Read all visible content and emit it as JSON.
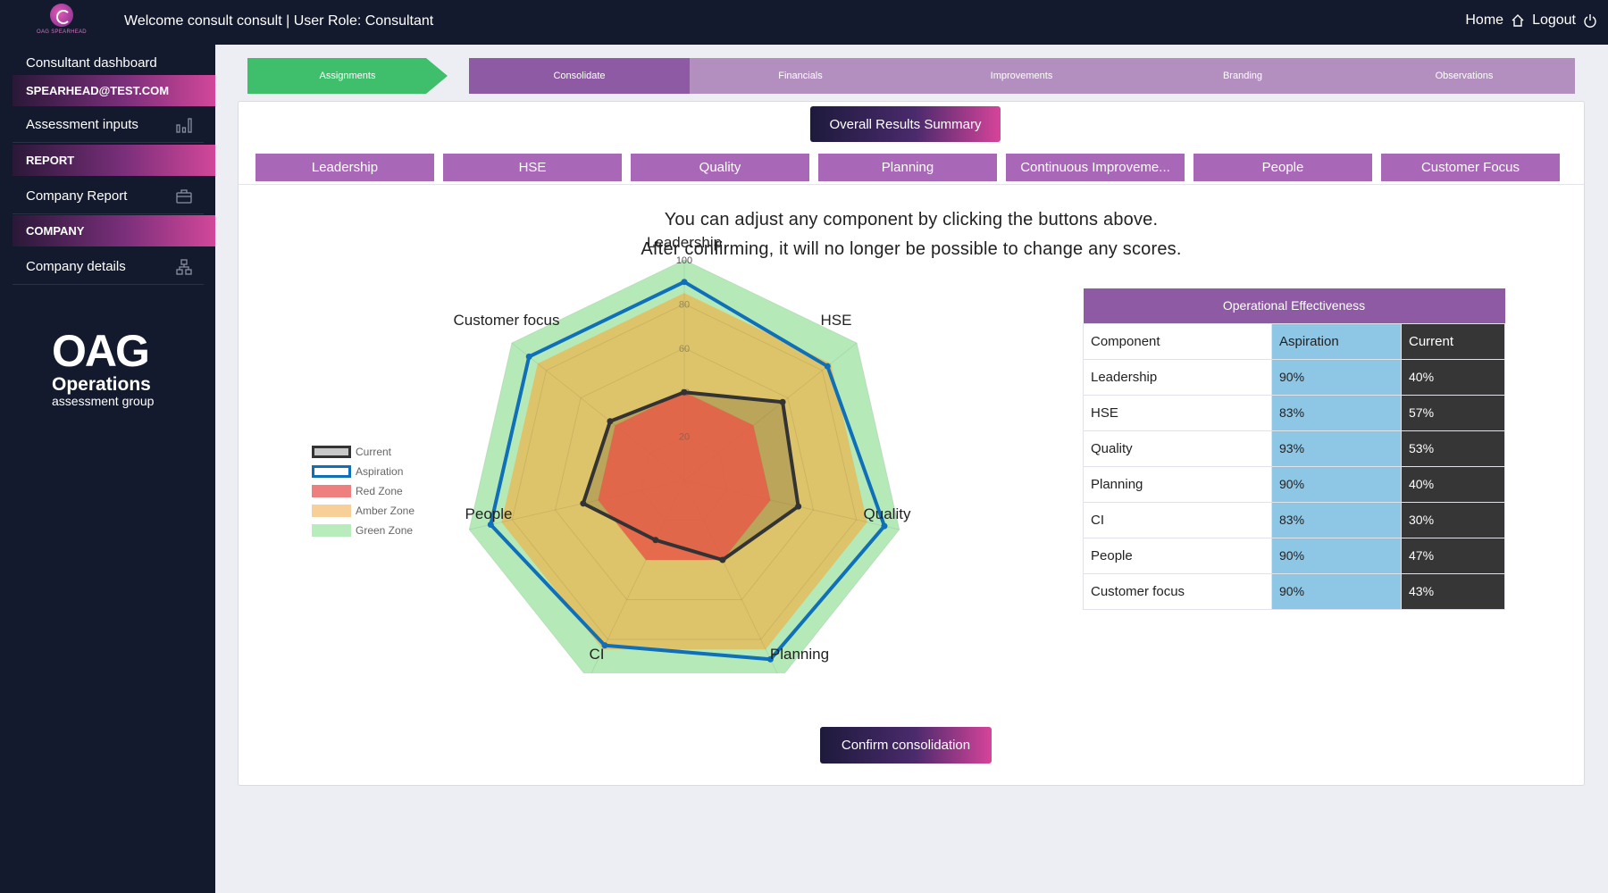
{
  "header": {
    "logo_text": "OAG SPEARHEAD",
    "welcome": "Welcome consult consult | User Role: Consultant",
    "home": "Home",
    "logout": "Logout"
  },
  "sidebar": {
    "dashboard": "Consultant dashboard",
    "email_header": "SPEARHEAD@TEST.COM",
    "assessment_inputs": "Assessment inputs",
    "report_header": "REPORT",
    "company_report": "Company Report",
    "company_header": "COMPANY",
    "company_details": "Company details",
    "logo": {
      "oag": "OAG",
      "line1": "Operations",
      "line2": "assessment group"
    }
  },
  "stepper": [
    "Assignments",
    "Consolidate",
    "Financials",
    "Improvements",
    "Branding",
    "Observations"
  ],
  "summary_button": "Overall Results Summary",
  "tabs": [
    "Leadership",
    "HSE",
    "Quality",
    "Planning",
    "Continuous Improveme...",
    "People",
    "Customer Focus"
  ],
  "instructions": [
    "You can adjust any component by clicking the buttons above.",
    "After confirming, it will no longer be possible to change any scores."
  ],
  "chart_data": {
    "type": "radar",
    "axes": [
      "Leadership",
      "HSE",
      "Quality",
      "Planning",
      "CI",
      "People",
      "Customer focus"
    ],
    "scale": {
      "min": 0,
      "max": 100,
      "ticks": [
        20,
        40,
        60,
        80,
        100
      ]
    },
    "series": [
      {
        "name": "Current",
        "values": [
          40,
          57,
          53,
          40,
          30,
          47,
          43
        ],
        "color": "#333333"
      },
      {
        "name": "Aspiration",
        "values": [
          90,
          83,
          93,
          90,
          83,
          90,
          90
        ],
        "color": "#0f6fb8"
      },
      {
        "name": "Red Zone",
        "values": [
          40,
          40,
          40,
          40,
          40,
          40,
          40
        ],
        "color": "#ef6f6f"
      },
      {
        "name": "Amber Zone",
        "values": [
          85,
          85,
          85,
          85,
          85,
          85,
          85
        ],
        "color": "#f7c98a"
      },
      {
        "name": "Green Zone",
        "values": [
          100,
          100,
          100,
          100,
          100,
          100,
          100
        ],
        "color": "#b5eab8"
      }
    ],
    "legend_position": "left"
  },
  "table": {
    "title": "Operational Effectiveness",
    "headers": [
      "Component",
      "Aspiration",
      "Current"
    ],
    "rows": [
      [
        "Leadership",
        "90%",
        "40%"
      ],
      [
        "HSE",
        "83%",
        "57%"
      ],
      [
        "Quality",
        "93%",
        "53%"
      ],
      [
        "Planning",
        "90%",
        "40%"
      ],
      [
        "CI",
        "83%",
        "30%"
      ],
      [
        "People",
        "90%",
        "47%"
      ],
      [
        "Customer focus",
        "90%",
        "43%"
      ]
    ]
  },
  "confirm_button": "Confirm consolidation",
  "colors": {
    "accent_purple": "#8d5aa3",
    "tab_purple": "#a867b7",
    "green_step": "#3fbf6b",
    "aspiration_blue": "#8ec6e6"
  }
}
